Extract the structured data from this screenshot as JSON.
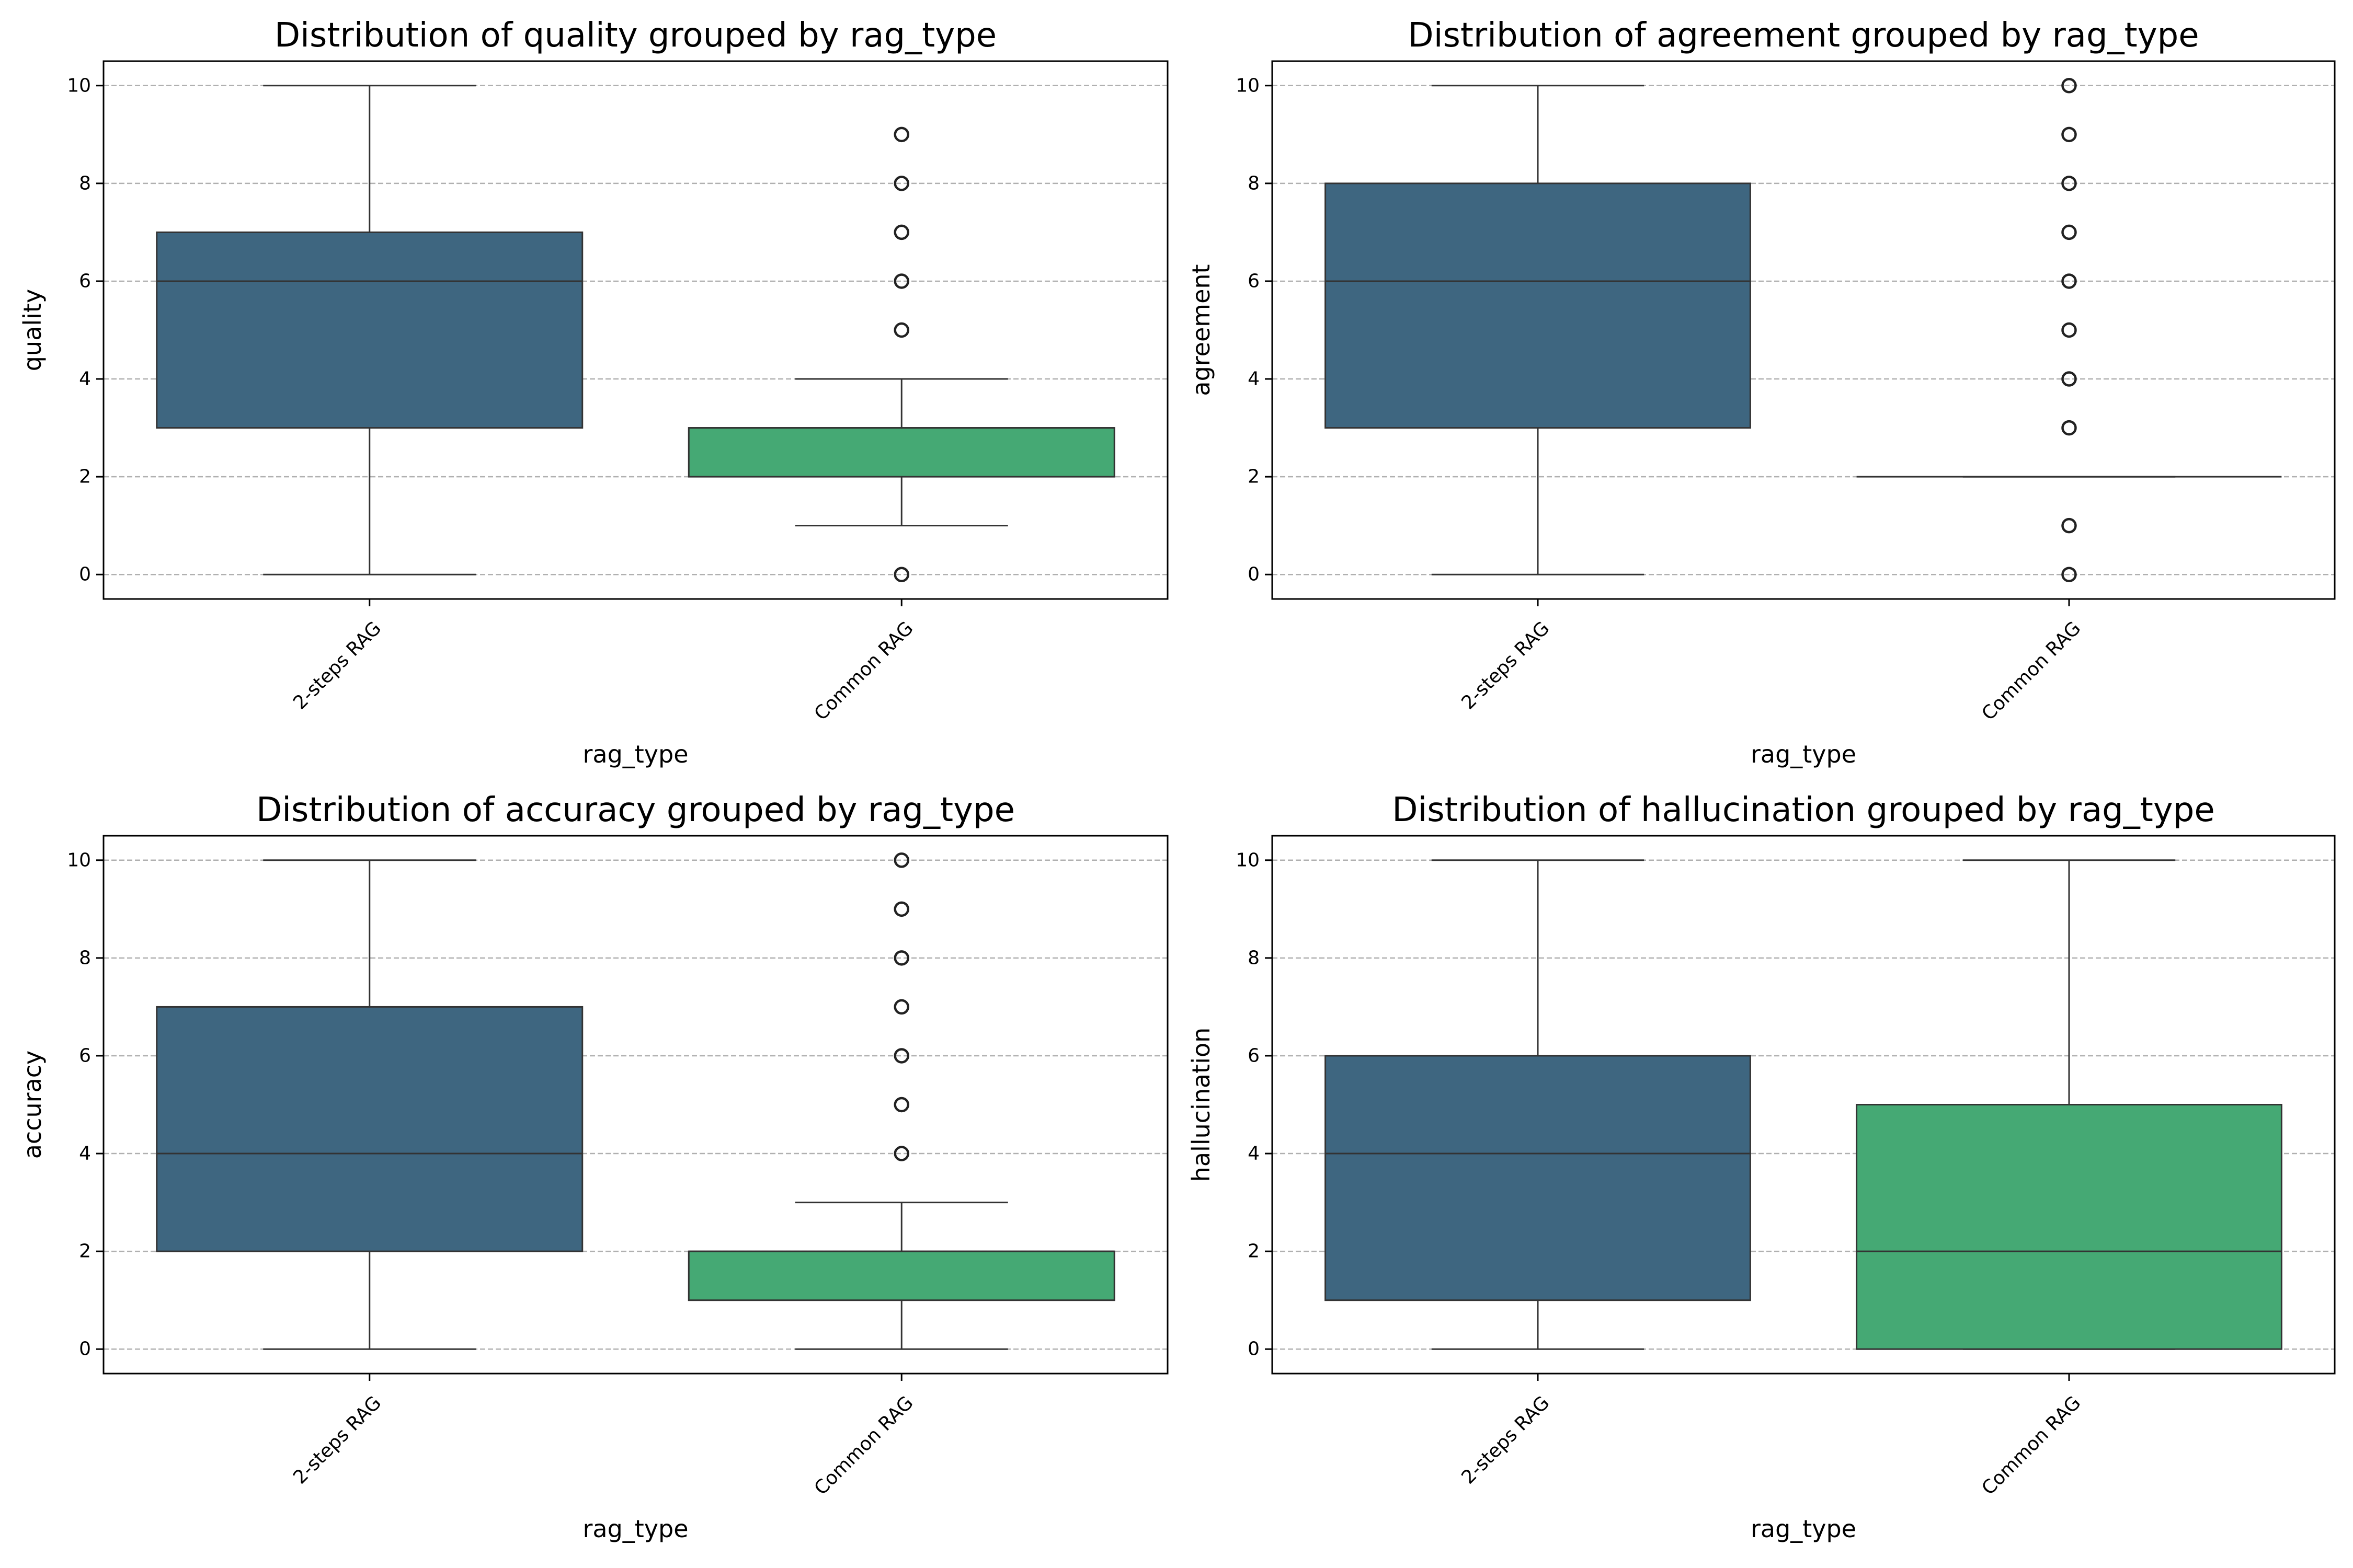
{
  "chart_data": [
    {
      "type": "box",
      "title": "Distribution of quality grouped by rag_type",
      "xlabel": "rag_type",
      "ylabel": "quality",
      "ylim": [
        -0.5,
        10.5
      ],
      "yticks": [
        0,
        2,
        4,
        6,
        8,
        10
      ],
      "grid": "horizontal-dashed",
      "categories": [
        "2-steps RAG",
        "Common RAG"
      ],
      "boxes": [
        {
          "category": "2-steps RAG",
          "whisker_low": 0,
          "q1": 3,
          "median": 6,
          "q3": 7,
          "whisker_high": 10,
          "outliers": [],
          "color": "#3e6680"
        },
        {
          "category": "Common RAG",
          "whisker_low": 1,
          "q1": 2,
          "median": 3,
          "q3": 3,
          "whisker_high": 4,
          "outliers": [
            0,
            5,
            6,
            7,
            8,
            9
          ],
          "color": "#45a974"
        }
      ]
    },
    {
      "type": "box",
      "title": "Distribution of agreement grouped by rag_type",
      "xlabel": "rag_type",
      "ylabel": "agreement",
      "ylim": [
        -0.5,
        10.5
      ],
      "yticks": [
        0,
        2,
        4,
        6,
        8,
        10
      ],
      "grid": "horizontal-dashed",
      "categories": [
        "2-steps RAG",
        "Common RAG"
      ],
      "boxes": [
        {
          "category": "2-steps RAG",
          "whisker_low": 0,
          "q1": 3,
          "median": 6,
          "q3": 8,
          "whisker_high": 10,
          "outliers": [],
          "color": "#3e6680"
        },
        {
          "category": "Common RAG",
          "whisker_low": 2,
          "q1": 2,
          "median": 2,
          "q3": 2,
          "whisker_high": 2,
          "outliers": [
            0,
            1,
            3,
            4,
            5,
            6,
            7,
            8,
            9,
            10
          ],
          "color": "#45a974"
        }
      ]
    },
    {
      "type": "box",
      "title": "Distribution of accuracy grouped by rag_type",
      "xlabel": "rag_type",
      "ylabel": "accuracy",
      "ylim": [
        -0.5,
        10.5
      ],
      "yticks": [
        0,
        2,
        4,
        6,
        8,
        10
      ],
      "grid": "horizontal-dashed",
      "categories": [
        "2-steps RAG",
        "Common RAG"
      ],
      "boxes": [
        {
          "category": "2-steps RAG",
          "whisker_low": 0,
          "q1": 2,
          "median": 4,
          "q3": 7,
          "whisker_high": 10,
          "outliers": [],
          "color": "#3e6680"
        },
        {
          "category": "Common RAG",
          "whisker_low": 0,
          "q1": 1,
          "median": 2,
          "q3": 2,
          "whisker_high": 3,
          "outliers": [
            4,
            5,
            6,
            7,
            8,
            9,
            10
          ],
          "color": "#45a974"
        }
      ]
    },
    {
      "type": "box",
      "title": "Distribution of hallucination grouped by rag_type",
      "xlabel": "rag_type",
      "ylabel": "hallucination",
      "ylim": [
        -0.5,
        10.5
      ],
      "yticks": [
        0,
        2,
        4,
        6,
        8,
        10
      ],
      "grid": "horizontal-dashed",
      "categories": [
        "2-steps RAG",
        "Common RAG"
      ],
      "boxes": [
        {
          "category": "2-steps RAG",
          "whisker_low": 0,
          "q1": 1,
          "median": 4,
          "q3": 6,
          "whisker_high": 10,
          "outliers": [],
          "color": "#3e6680"
        },
        {
          "category": "Common RAG",
          "whisker_low": 0,
          "q1": 0,
          "median": 2,
          "q3": 5,
          "whisker_high": 10,
          "outliers": [],
          "color": "#45a974"
        }
      ]
    }
  ]
}
